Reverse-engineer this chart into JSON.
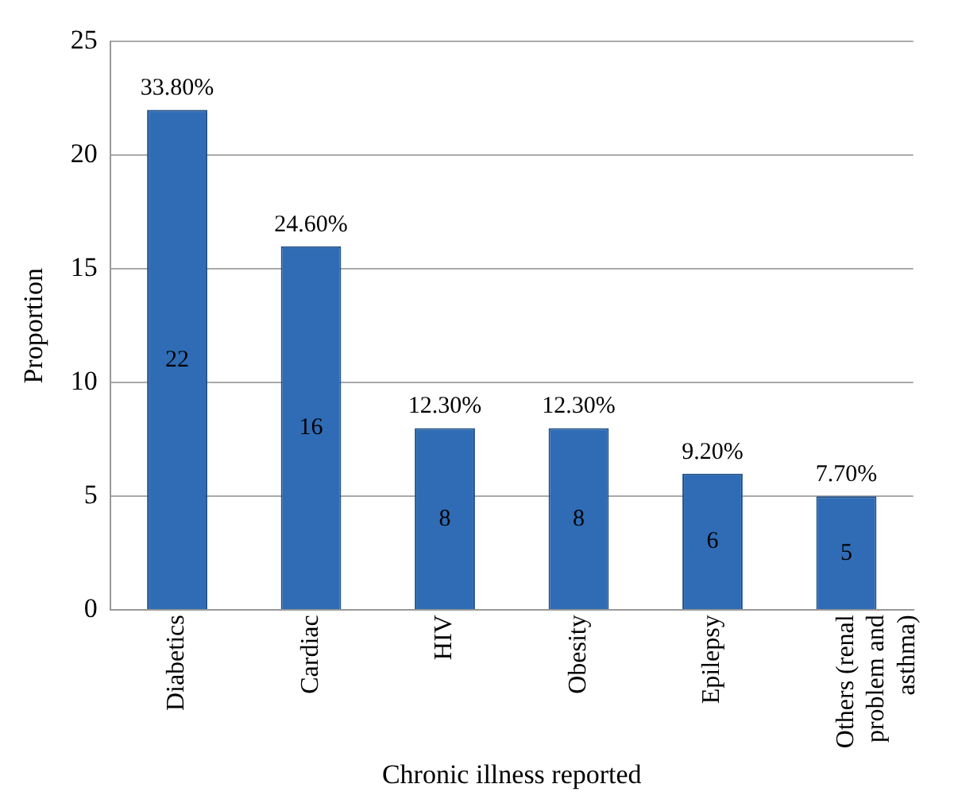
{
  "chart_data": {
    "type": "bar",
    "xlabel": "Chronic illness reported",
    "ylabel": "Proportion",
    "categories": [
      "Diabetics",
      "Cardiac",
      "HIV",
      "Obesity",
      "Epilepsy",
      "Others (renal problem and asthma)"
    ],
    "values": [
      22,
      16,
      8,
      8,
      6,
      5
    ],
    "color": "#2f6cb5",
    "ylim": [
      0,
      25
    ],
    "yticks": [
      0,
      5,
      10,
      15,
      20,
      25
    ],
    "grid": "y",
    "legend": false,
    "data_labels": true,
    "annotations": [
      {
        "text": "33.80%",
        "x": "Diabetics",
        "y": 22
      },
      {
        "text": "24.60%",
        "x": "Cardiac",
        "y": 16
      },
      {
        "text": "12.30%",
        "x": "HIV",
        "y": 8
      },
      {
        "text": "12.30%",
        "x": "Obesity",
        "y": 8
      },
      {
        "text": "9.20%",
        "x": "Epilepsy",
        "y": 6
      },
      {
        "text": "7.70%",
        "x": "Others (renal problem and asthma)",
        "y": 5
      }
    ]
  }
}
